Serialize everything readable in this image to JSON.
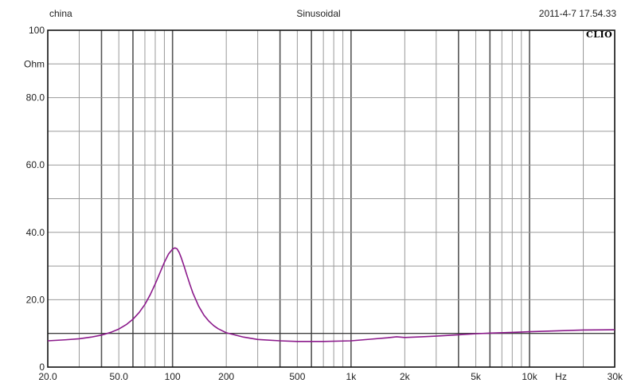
{
  "header": {
    "left": "china",
    "center": "Sinusoidal",
    "right": "2011-4-7 17.54.33",
    "brand": "CLIO"
  },
  "chart_data": {
    "type": "line",
    "title": "",
    "xscale": "log",
    "xlim": [
      20,
      30000
    ],
    "ylim": [
      0,
      100
    ],
    "grid": true,
    "x_unit_label": "Hz",
    "y_unit_label": "Ohm",
    "x_tick_labels": [
      {
        "value": 20,
        "label": "20.0"
      },
      {
        "value": 50,
        "label": "50.0"
      },
      {
        "value": 100,
        "label": "100"
      },
      {
        "value": 200,
        "label": "200"
      },
      {
        "value": 500,
        "label": "500"
      },
      {
        "value": 1000,
        "label": "1k"
      },
      {
        "value": 2000,
        "label": "2k"
      },
      {
        "value": 5000,
        "label": "5k"
      },
      {
        "value": 10000,
        "label": "10k"
      },
      {
        "value": 30000,
        "label": "30k"
      }
    ],
    "y_tick_labels": [
      {
        "value": 0,
        "label": "0"
      },
      {
        "value": 20,
        "label": "20.0"
      },
      {
        "value": 40,
        "label": "40.0"
      },
      {
        "value": 60,
        "label": "60.0"
      },
      {
        "value": 80,
        "label": "80.0"
      },
      {
        "value": 100,
        "label": "100"
      }
    ],
    "series": [
      {
        "color": "#8b1a8b",
        "x": [
          20,
          25,
          30,
          35,
          40,
          45,
          50,
          55,
          60,
          65,
          70,
          75,
          80,
          85,
          90,
          95,
          100,
          103,
          106,
          109,
          112,
          116,
          120,
          125,
          130,
          140,
          150,
          160,
          170,
          180,
          200,
          250,
          300,
          400,
          500,
          700,
          1000,
          1300,
          1600,
          1800,
          2000,
          2500,
          3000,
          4000,
          5000,
          6000,
          8000,
          10000,
          15000,
          20000,
          30000
        ],
        "y": [
          7.8,
          8.1,
          8.4,
          8.9,
          9.5,
          10.3,
          11.3,
          12.6,
          14.2,
          16.2,
          18.6,
          21.5,
          24.7,
          28.0,
          31.1,
          33.6,
          35.0,
          35.4,
          35.1,
          34.0,
          32.4,
          30.0,
          27.5,
          24.6,
          22.0,
          18.1,
          15.4,
          13.6,
          12.3,
          11.4,
          10.2,
          8.9,
          8.2,
          7.8,
          7.6,
          7.6,
          7.8,
          8.3,
          8.7,
          9.0,
          8.8,
          9.0,
          9.2,
          9.6,
          9.9,
          10.1,
          10.3,
          10.5,
          10.8,
          11.0,
          11.1
        ]
      }
    ],
    "reference_lines": [
      {
        "orientation": "horizontal",
        "y": 10,
        "color": "#2a2a2a"
      }
    ]
  }
}
